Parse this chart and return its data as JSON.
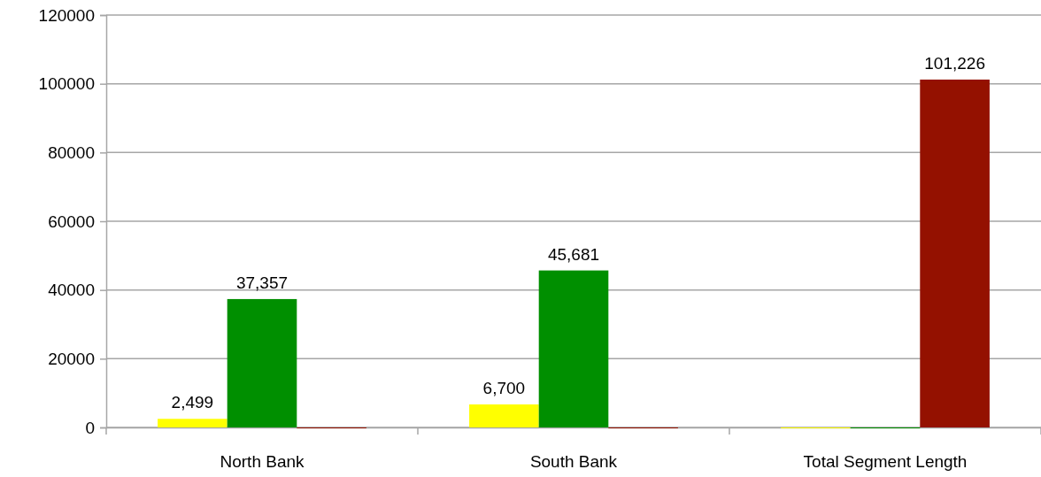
{
  "chart_data": {
    "type": "bar",
    "categories": [
      "North Bank",
      "South Bank",
      "Total Segment Length"
    ],
    "series": [
      {
        "color": "#ffff00",
        "values": [
          2499,
          6700,
          0
        ],
        "value_labels": [
          "2,499",
          "6,700",
          null
        ]
      },
      {
        "color": "#008f00",
        "values": [
          37357,
          45681,
          0
        ],
        "value_labels": [
          "37,357",
          "45,681",
          null
        ]
      },
      {
        "color": "#941100",
        "values": [
          0,
          0,
          101226
        ],
        "value_labels": [
          null,
          null,
          "101,226"
        ]
      }
    ],
    "ylim": [
      0,
      120000
    ],
    "yticks": [
      0,
      20000,
      40000,
      60000,
      80000,
      100000,
      120000
    ],
    "grid": "y"
  }
}
